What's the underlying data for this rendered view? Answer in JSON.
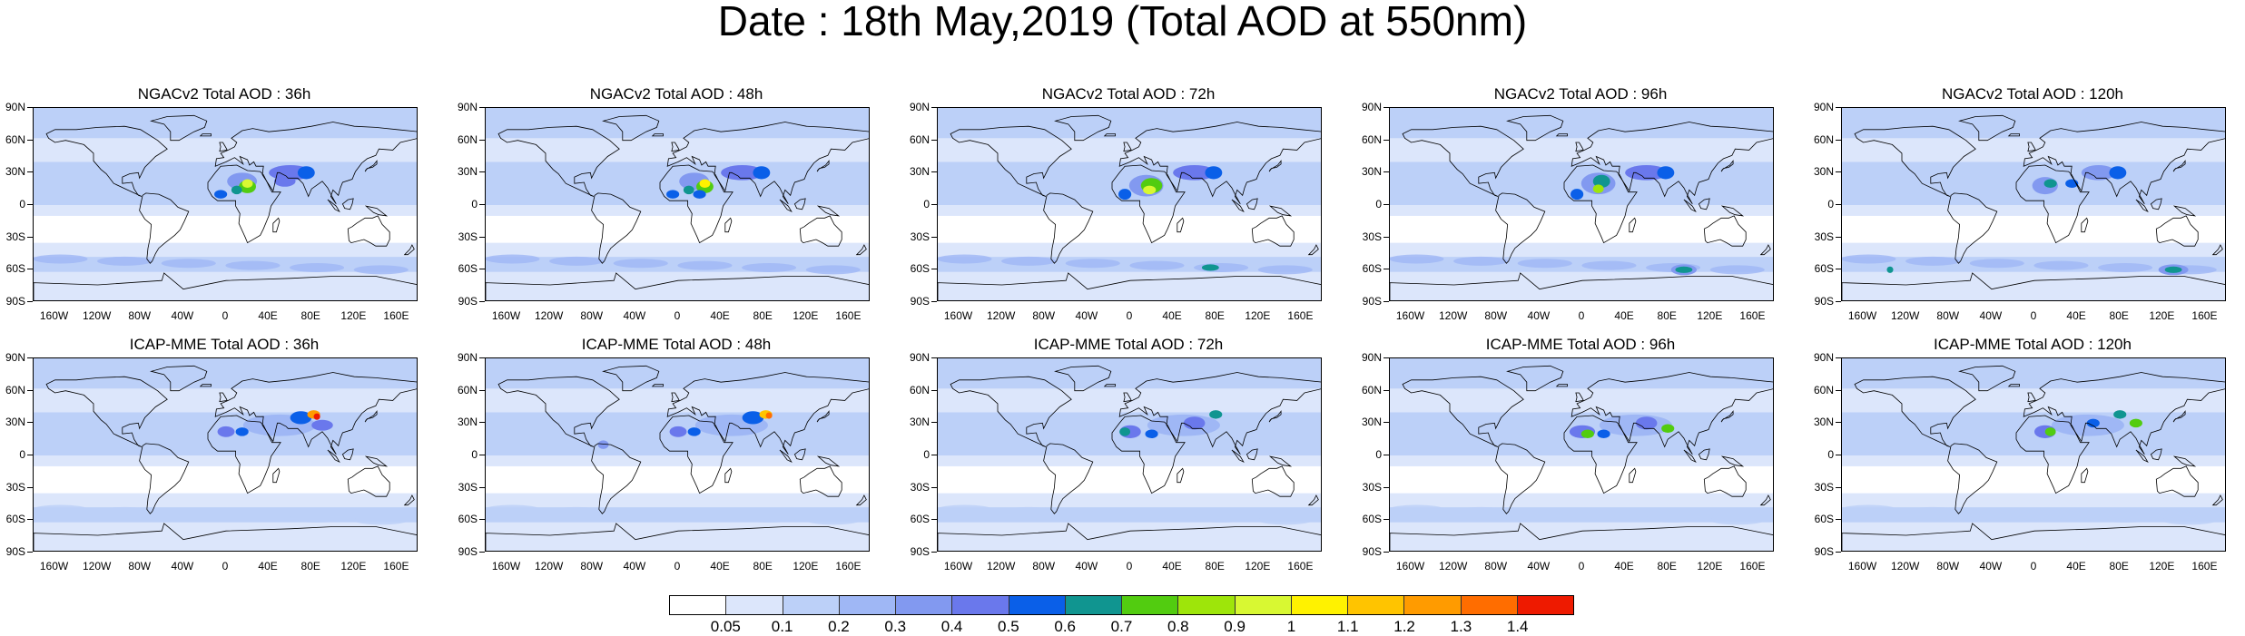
{
  "title": "Date : 18th May,2019 (Total AOD at 550nm)",
  "panels": [
    {
      "title": "NGACv2 Total AOD : 36h"
    },
    {
      "title": "NGACv2 Total AOD : 48h"
    },
    {
      "title": "NGACv2 Total AOD : 72h"
    },
    {
      "title": "NGACv2 Total AOD : 96h"
    },
    {
      "title": "NGACv2 Total AOD : 120h"
    },
    {
      "title": "ICAP-MME Total AOD : 36h"
    },
    {
      "title": "ICAP-MME Total AOD : 48h"
    },
    {
      "title": "ICAP-MME Total AOD : 72h"
    },
    {
      "title": "ICAP-MME Total AOD : 96h"
    },
    {
      "title": "ICAP-MME Total AOD : 120h"
    }
  ],
  "lat_labels": [
    "90N",
    "60N",
    "30N",
    "0",
    "30S",
    "60S",
    "90S"
  ],
  "lon_labels": [
    "160W",
    "120W",
    "80W",
    "40W",
    "0",
    "40E",
    "80E",
    "120E",
    "160E"
  ],
  "colorbar": {
    "labels": [
      "0.05",
      "0.1",
      "0.2",
      "0.3",
      "0.4",
      "0.5",
      "0.6",
      "0.7",
      "0.8",
      "0.9",
      "1",
      "1.1",
      "1.2",
      "1.3",
      "1.4"
    ],
    "colors": [
      "#ffffff",
      "#dce6fb",
      "#bcd0f8",
      "#9fb7f5",
      "#8299f0",
      "#6a78ec",
      "#0a5fe8",
      "#109590",
      "#52cc10",
      "#9ee50a",
      "#d8f832",
      "#fff200",
      "#ffc400",
      "#ff9b00",
      "#ff6d00",
      "#ee1a00"
    ]
  }
}
